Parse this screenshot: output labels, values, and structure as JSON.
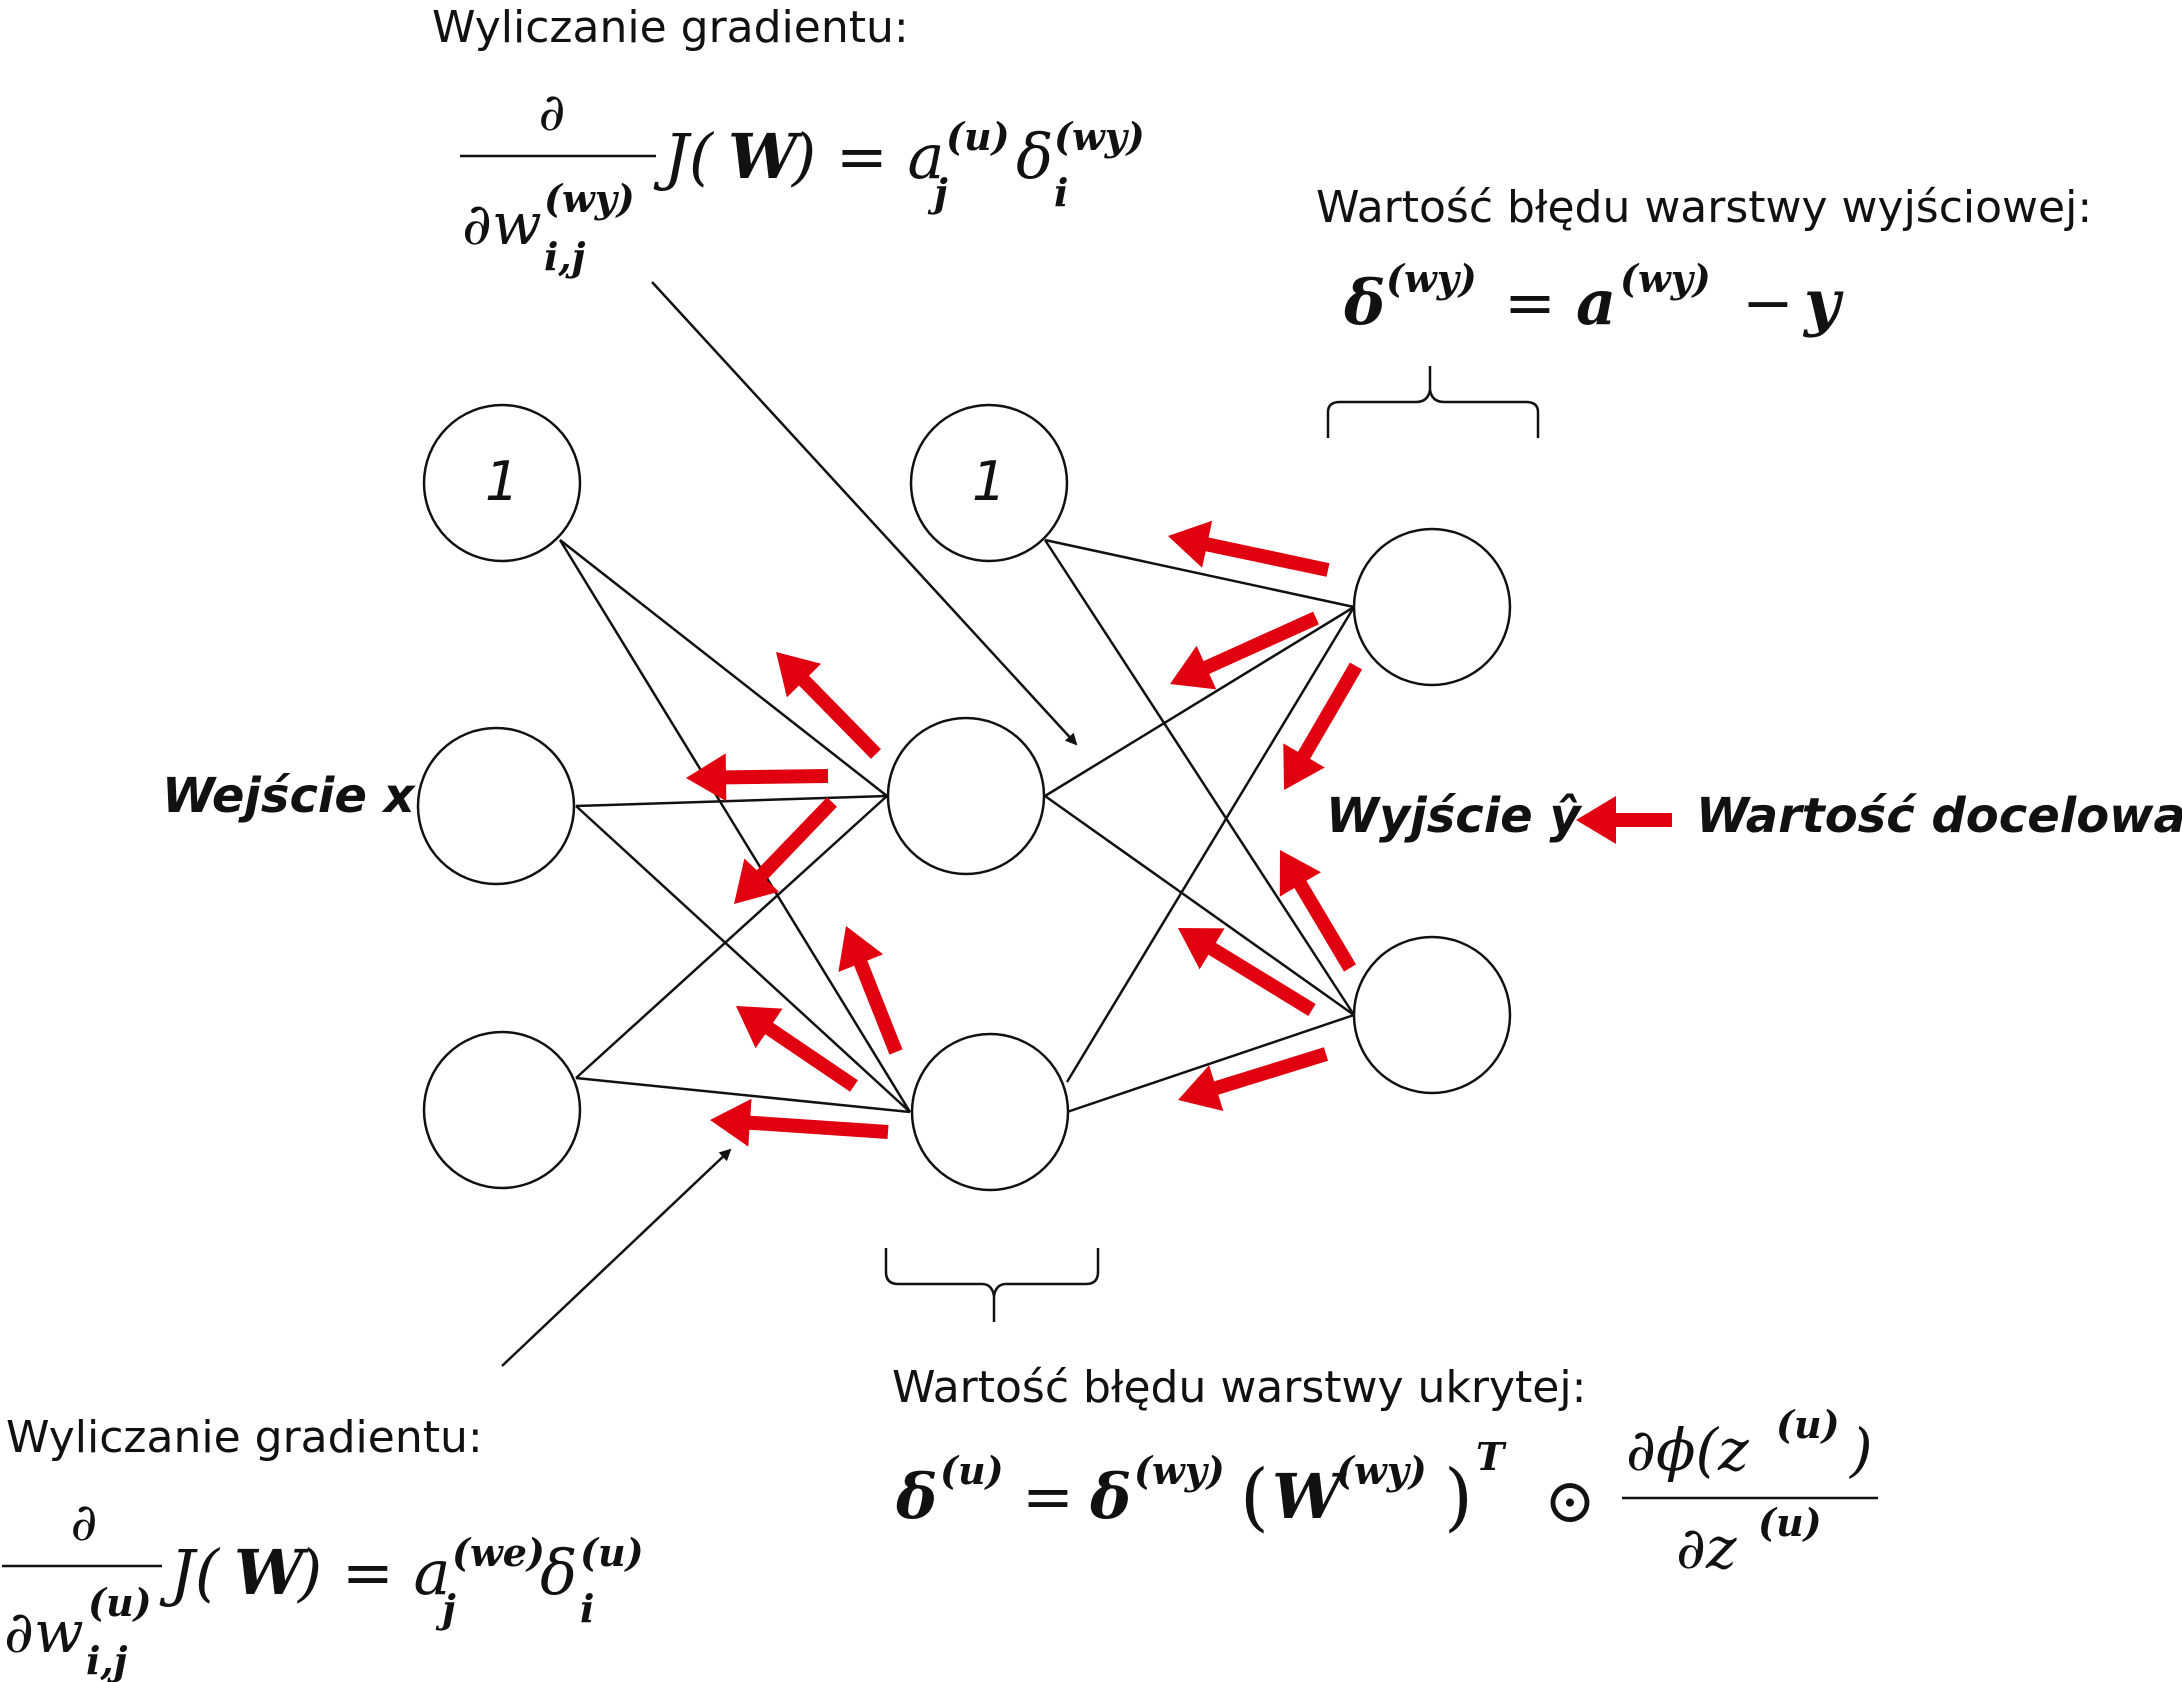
{
  "nodes": {
    "input_bias_label": "1",
    "hidden_bias_label": "1"
  },
  "labels": {
    "input": "Wejście x",
    "output": "Wyjście ŷ",
    "target": "Wartość docelowa y"
  },
  "gradient_top": {
    "title": "Wyliczanie gradientu:",
    "partial": "∂",
    "denom_w": "∂w",
    "denom_sup": "(wy)",
    "denom_sub": "i,j",
    "rhs_J": "J(",
    "rhs_W": "W",
    "rhs_eq": ") = a",
    "rhs_a_sup": "(u)",
    "rhs_a_sub": "j",
    "rhs_delta": "δ",
    "rhs_delta_sup": "(wy)",
    "rhs_delta_sub": "i"
  },
  "output_error": {
    "title": "Wartość błędu warstwy wyjściowej:",
    "delta": "δ",
    "delta_sup": "(wy)",
    "eq": "=",
    "a": "a",
    "a_sup": "(wy)",
    "minus": "−",
    "y": "y"
  },
  "gradient_bottom": {
    "title": "Wyliczanie gradientu:",
    "partial": "∂",
    "denom_w": "∂w",
    "denom_sup": "(u)",
    "denom_sub": "i,j",
    "rhs_J": "J(",
    "rhs_W": "W",
    "rhs_eq": ") = a",
    "rhs_a_sup": "(we)",
    "rhs_a_sub": "j",
    "rhs_delta": "δ",
    "rhs_delta_sup": "(u)",
    "rhs_delta_sub": "i"
  },
  "hidden_error": {
    "title": "Wartość błędu warstwy ukrytej:",
    "delta": "δ",
    "delta_sup": "(u)",
    "eq": "=",
    "delta2": "δ",
    "delta2_sup": "(wy)",
    "W": "W",
    "W_sup": "(wy)",
    "T": "T",
    "odot": "⊙",
    "num": "∂ϕ(z",
    "num_sup": "(u)",
    "num_close": ")",
    "den": "∂z",
    "den_sup": "(u)"
  },
  "colors": {
    "arrow_red": "#e0000f",
    "ink": "#111111"
  }
}
